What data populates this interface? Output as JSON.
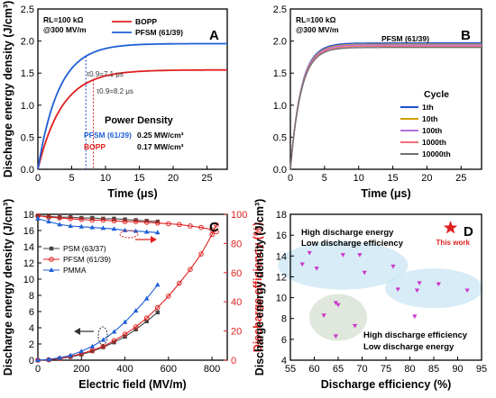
{
  "colors": {
    "blue": "#1f5fd6",
    "red": "#e02020",
    "dark": "#444444",
    "tau_blue": "#1f3fb0",
    "tau_red": "#d02020",
    "cyc_1": "#1f4fd0",
    "cyc_10": "#d0a000",
    "cyc_100": "#b070e0",
    "cyc_1000": "#f07080",
    "cyc_10000": "#707070",
    "star": "#e02020",
    "magenta": "#cc33cc",
    "ellipse_blue": "#cde7f5",
    "ellipse_green": "#dde4d8"
  },
  "chart_data": [
    {
      "panel": "A",
      "type": "line",
      "xlabel": "Time (μs)",
      "ylabel": "Discharge energy density (J/cm³)",
      "xlim": [
        0,
        28
      ],
      "ylim": [
        0,
        2.5
      ],
      "xticks": [
        "0",
        "5",
        "10",
        "15",
        "20",
        "25"
      ],
      "yticks": [
        "0.0",
        "0.5",
        "1.0",
        "1.5",
        "2.0",
        "2.5"
      ],
      "conditions": [
        "RL=100 kΩ",
        "@300 MV/m"
      ],
      "legend": [
        "BOPP",
        "PFSM (61/39)"
      ],
      "series": [
        {
          "name": "BOPP",
          "plateau": 1.55,
          "tau_0.9": 8.2
        },
        {
          "name": "PFSM (61/39)",
          "plateau": 1.96,
          "tau_0.9": 7.1
        }
      ],
      "tau_labels": [
        "τ0.9=7.1 μs",
        "τ0.9=8.2 μs"
      ],
      "power_title": "Power Density",
      "power_rows": [
        {
          "name": "PFSM (61/39)",
          "value": "0.25 MW/cm³"
        },
        {
          "name": "BOPP",
          "value": "0.17 MW/cm³"
        }
      ]
    },
    {
      "panel": "B",
      "type": "line",
      "title": "PFSM (61/39)",
      "xlabel": "Time (μs)",
      "xlim": [
        0,
        28
      ],
      "ylim": [
        0,
        2.5
      ],
      "xticks": [
        "0",
        "5",
        "10",
        "15",
        "20",
        "25"
      ],
      "yticks": [
        "0.0",
        "0.5",
        "1.0",
        "1.5",
        "2.0",
        "2.5"
      ],
      "conditions": [
        "RL=100 kΩ",
        "@300 MV/m"
      ],
      "legend_title": "Cycle",
      "series": [
        {
          "name": "1th",
          "plateau": 1.97
        },
        {
          "name": "10th",
          "plateau": 1.95
        },
        {
          "name": "100th",
          "plateau": 1.94
        },
        {
          "name": "1000th",
          "plateau": 1.92
        },
        {
          "name": "10000th",
          "plateau": 1.9
        }
      ]
    },
    {
      "panel": "C",
      "type": "line",
      "xlabel": "Electric field (MV/m)",
      "ylabel": "Discharge energy density (J/cm³)",
      "y2label": "Discharge efficiency (%)",
      "xlim": [
        0,
        870
      ],
      "ylim": [
        0,
        18
      ],
      "y2lim": [
        0,
        100
      ],
      "xticks": [
        "0",
        "200",
        "400",
        "600",
        "800"
      ],
      "yticks": [
        "0",
        "2",
        "4",
        "6",
        "8",
        "10",
        "12",
        "14",
        "16",
        "18"
      ],
      "y2ticks": [
        "0",
        "20",
        "40",
        "60",
        "80",
        "100"
      ],
      "legend": [
        "PSM (63/37)",
        "PFSM (61/39)",
        "PMMA"
      ],
      "x": [
        0,
        50,
        100,
        150,
        200,
        250,
        300,
        350,
        400,
        450,
        500,
        550,
        600,
        650,
        700,
        750,
        800,
        820
      ],
      "series": [
        {
          "name": "PSM (63/37)",
          "x": [
            0,
            50,
            100,
            150,
            200,
            250,
            300,
            350,
            400,
            450,
            500,
            550
          ],
          "energy": [
            0,
            0.05,
            0.2,
            0.4,
            0.7,
            1.1,
            1.6,
            2.2,
            2.9,
            3.8,
            4.8,
            5.9
          ],
          "efficiency": [
            99,
            98.5,
            98,
            98,
            97.5,
            97.5,
            97,
            97,
            96.5,
            96,
            95.5,
            95
          ]
        },
        {
          "name": "PFSM (61/39)",
          "x": [
            0,
            50,
            100,
            150,
            200,
            250,
            300,
            350,
            400,
            450,
            500,
            550,
            600,
            650,
            700,
            750,
            800,
            820
          ],
          "energy": [
            0,
            0.05,
            0.2,
            0.45,
            0.8,
            1.2,
            1.7,
            2.4,
            3.2,
            4.1,
            5.2,
            6.5,
            7.9,
            9.5,
            11.2,
            13.1,
            15.5,
            16.7
          ],
          "efficiency": [
            99,
            98,
            97.5,
            97,
            96.5,
            96,
            96,
            95.5,
            95,
            95,
            94.5,
            94,
            93.5,
            93,
            92,
            91,
            89.5,
            88
          ]
        },
        {
          "name": "PMMA",
          "x": [
            0,
            50,
            100,
            150,
            200,
            250,
            300,
            350,
            400,
            450,
            500,
            550
          ],
          "energy": [
            0,
            0.1,
            0.3,
            0.6,
            1.1,
            1.7,
            2.5,
            3.5,
            4.7,
            6.1,
            7.6,
            9.3
          ],
          "efficiency": [
            97,
            95,
            93,
            92,
            91.5,
            91,
            90.5,
            90,
            89,
            88.5,
            88,
            87.5
          ]
        }
      ]
    },
    {
      "panel": "D",
      "type": "scatter",
      "xlabel": "Discharge efficiency (%)",
      "ylabel": "Discharge energy density (J/cm³)",
      "xlim": [
        55,
        95
      ],
      "ylim": [
        4,
        18
      ],
      "xticks": [
        "55",
        "60",
        "65",
        "70",
        "75",
        "80",
        "85",
        "90",
        "95"
      ],
      "yticks": [
        "4",
        "6",
        "8",
        "10",
        "12",
        "14",
        "16",
        "18"
      ],
      "annotation_high_low": [
        "High  discharge energy",
        "Low discharge efficiency"
      ],
      "annotation_low_high": [
        "High  discharge efficiency",
        "Low discharge energy"
      ],
      "this_work_label": "This work",
      "this_work": {
        "x": 88.5,
        "y": 16.7
      },
      "points": [
        {
          "x": 59,
          "y": 14.3
        },
        {
          "x": 57.5,
          "y": 13.2
        },
        {
          "x": 60.5,
          "y": 12.8
        },
        {
          "x": 66,
          "y": 14.1
        },
        {
          "x": 69.5,
          "y": 14.1
        },
        {
          "x": 70.5,
          "y": 12.4
        },
        {
          "x": 76.5,
          "y": 13.0
        },
        {
          "x": 77.5,
          "y": 10.8
        },
        {
          "x": 81.5,
          "y": 10.7
        },
        {
          "x": 82,
          "y": 11.4
        },
        {
          "x": 86,
          "y": 11.3
        },
        {
          "x": 92,
          "y": 10.7
        },
        {
          "x": 81,
          "y": 8.2
        },
        {
          "x": 64.5,
          "y": 9.5
        },
        {
          "x": 65,
          "y": 9.3
        },
        {
          "x": 62,
          "y": 8.3
        },
        {
          "x": 68.5,
          "y": 7.3
        },
        {
          "x": 64.5,
          "y": 6.3
        }
      ]
    }
  ]
}
